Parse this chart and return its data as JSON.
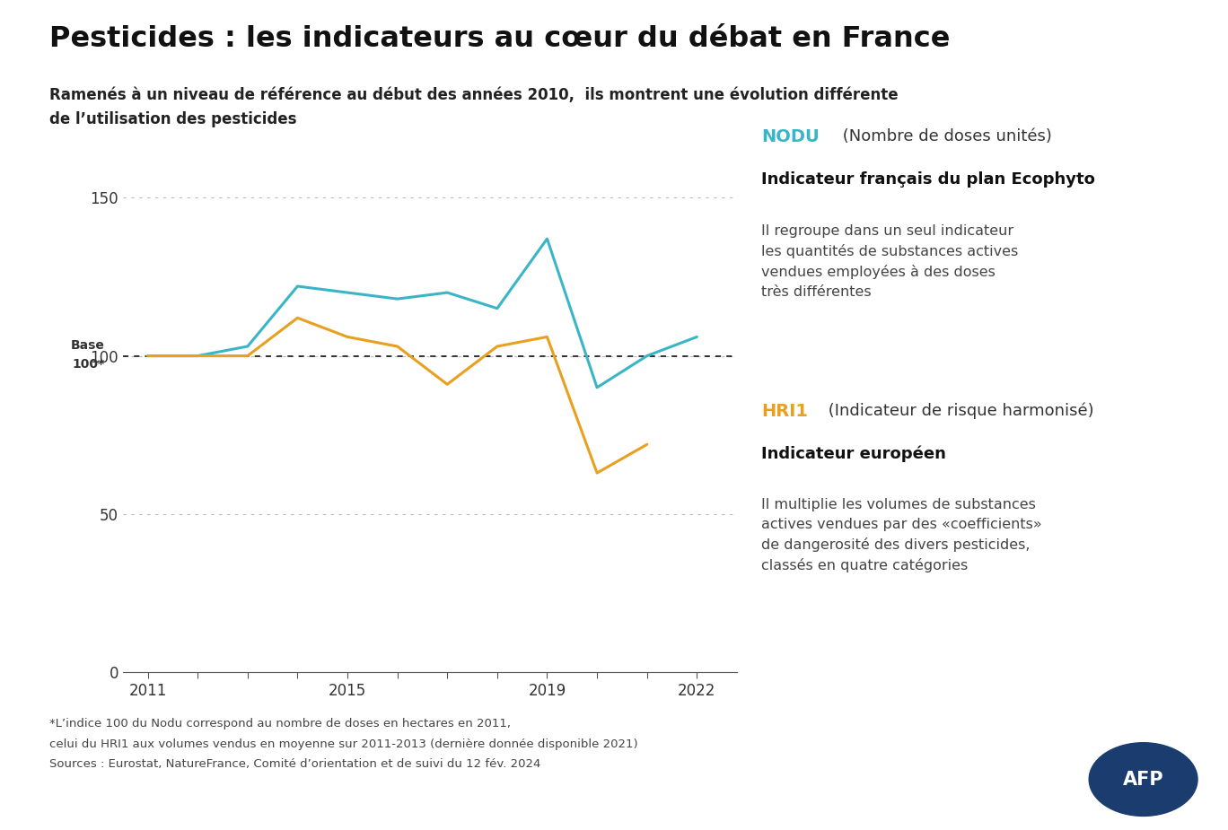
{
  "title": "Pesticides : les indicateurs au cœur du débat en France",
  "subtitle_line1": "Ramenés à un niveau de référence au début des années 2010,  ils montrent une évolution différente",
  "subtitle_line2": "de l’utilisation des pesticides",
  "nodu_years": [
    2011,
    2012,
    2013,
    2014,
    2015,
    2016,
    2017,
    2018,
    2019,
    2020,
    2021,
    2022
  ],
  "nodu_values": [
    100,
    100,
    103,
    122,
    120,
    118,
    120,
    115,
    137,
    90,
    100,
    106
  ],
  "hri1_years": [
    2011,
    2012,
    2013,
    2014,
    2015,
    2016,
    2017,
    2018,
    2019,
    2020,
    2021
  ],
  "hri1_values": [
    100,
    100,
    100,
    112,
    106,
    103,
    91,
    103,
    106,
    63,
    72
  ],
  "nodu_color": "#3ab5c8",
  "hri1_color": "#e8a020",
  "base_line_y": 100,
  "ylim": [
    0,
    160
  ],
  "yticks": [
    0,
    50,
    100,
    150
  ],
  "xlim": [
    2010.5,
    2022.8
  ],
  "background_color": "#ffffff",
  "footnote_line1": "*L’indice 100 du Nodu correspond au nombre de doses en hectares en 2011,",
  "footnote_line2": "celui du HRI1 aux volumes vendus en moyenne sur 2011-2013 (dernière donnée disponible 2021)",
  "footnote_line3": "Sources : Eurostat, NatureFrance, Comité d’orientation et de suivi du 12 fév. 2024",
  "nodu_label_bold": "NODU",
  "nodu_label_normal": " (Nombre de doses unités)",
  "nodu_sublabel_bold": "Indicateur français du plan Ecophyto",
  "nodu_desc": "Il regroupe dans un seul indicateur\nles quantités de substances actives\nvendues employées à des doses\ntrès différentes",
  "hri1_label_bold": "HRI1",
  "hri1_label_normal": " (Indicateur de risque harmonisé)",
  "hri1_sublabel_bold": "Indicateur européen",
  "hri1_desc": "Il multiplie les volumes de substances\nactives vendues par des «coefficients»\nde dangerosité des divers pesticides,\nclassés en quatre catégories",
  "base_label_line1": "Base",
  "base_label_line2": "100*"
}
